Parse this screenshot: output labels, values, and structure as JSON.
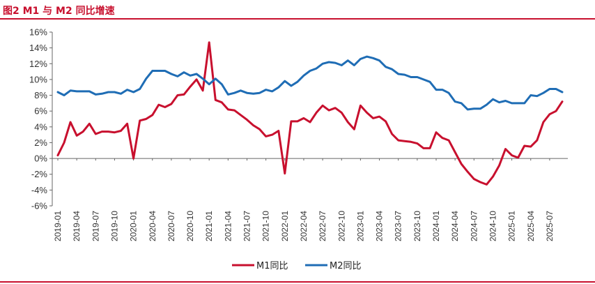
{
  "figure_title": "图2  M1 与 M2 同比增速",
  "chart_data": {
    "type": "line",
    "title": "图2  M1 与 M2 同比增速",
    "xlabel": "",
    "ylabel": "",
    "ylim": [
      -6,
      16
    ],
    "y_ticks": [
      "16%",
      "14%",
      "12%",
      "10%",
      "8%",
      "6%",
      "4%",
      "2%",
      "0%",
      "-2%",
      "-4%",
      "-6%"
    ],
    "x_start": "2019-01",
    "x_tick_labels": [
      "2019-01",
      "2019-04",
      "2019-07",
      "2019-10",
      "2020-01",
      "2020-04",
      "2020-07",
      "2020-10",
      "2021-01",
      "2021-04",
      "2021-07",
      "2021-10",
      "2022-01",
      "2022-04",
      "2022-07",
      "2022-10",
      "2023-01",
      "2023-04",
      "2023-07",
      "2023-10",
      "2024-01",
      "2024-04",
      "2024-07",
      "2024-10",
      "2025-01",
      "2025-04",
      "2025-07"
    ],
    "grid": false,
    "legend_position": "bottom-center",
    "series": [
      {
        "name": "M1同比",
        "color": "#c8102e",
        "values": [
          0.4,
          2.0,
          4.6,
          2.9,
          3.4,
          4.4,
          3.1,
          3.4,
          3.4,
          3.3,
          3.5,
          4.4,
          0.0,
          4.8,
          5.0,
          5.5,
          6.8,
          6.5,
          6.9,
          8.0,
          8.1,
          9.1,
          10.0,
          8.6,
          14.7,
          7.4,
          7.1,
          6.2,
          6.1,
          5.5,
          4.9,
          4.2,
          3.7,
          2.8,
          3.0,
          3.5,
          -1.9,
          4.7,
          4.7,
          5.1,
          4.6,
          5.8,
          6.7,
          6.1,
          6.4,
          5.8,
          4.6,
          3.7,
          6.7,
          5.8,
          5.1,
          5.3,
          4.7,
          3.1,
          2.3,
          2.2,
          2.1,
          1.9,
          1.3,
          1.3,
          3.3,
          2.6,
          2.3,
          0.8,
          -0.7,
          -1.7,
          -2.6,
          -3.0,
          -3.3,
          -2.3,
          -0.9,
          1.2,
          0.4,
          0.1,
          1.6,
          1.5,
          2.3,
          4.6,
          5.6,
          6.0,
          7.2
        ]
      },
      {
        "name": "M2同比",
        "color": "#1f6db5",
        "values": [
          8.4,
          8.0,
          8.6,
          8.5,
          8.5,
          8.5,
          8.1,
          8.2,
          8.4,
          8.4,
          8.2,
          8.7,
          8.4,
          8.8,
          10.1,
          11.1,
          11.1,
          11.1,
          10.7,
          10.4,
          10.9,
          10.5,
          10.7,
          10.1,
          9.4,
          10.1,
          9.4,
          8.1,
          8.3,
          8.6,
          8.3,
          8.2,
          8.3,
          8.7,
          8.5,
          9.0,
          9.8,
          9.2,
          9.7,
          10.5,
          11.1,
          11.4,
          12.0,
          12.2,
          12.1,
          11.8,
          12.4,
          11.8,
          12.6,
          12.9,
          12.7,
          12.4,
          11.6,
          11.3,
          10.7,
          10.6,
          10.3,
          10.3,
          10.0,
          9.7,
          8.7,
          8.7,
          8.3,
          7.2,
          7.0,
          6.2,
          6.3,
          6.3,
          6.8,
          7.5,
          7.1,
          7.3,
          7.0,
          7.0,
          7.0,
          8.0,
          7.9,
          8.3,
          8.8,
          8.8,
          8.4
        ]
      }
    ]
  }
}
